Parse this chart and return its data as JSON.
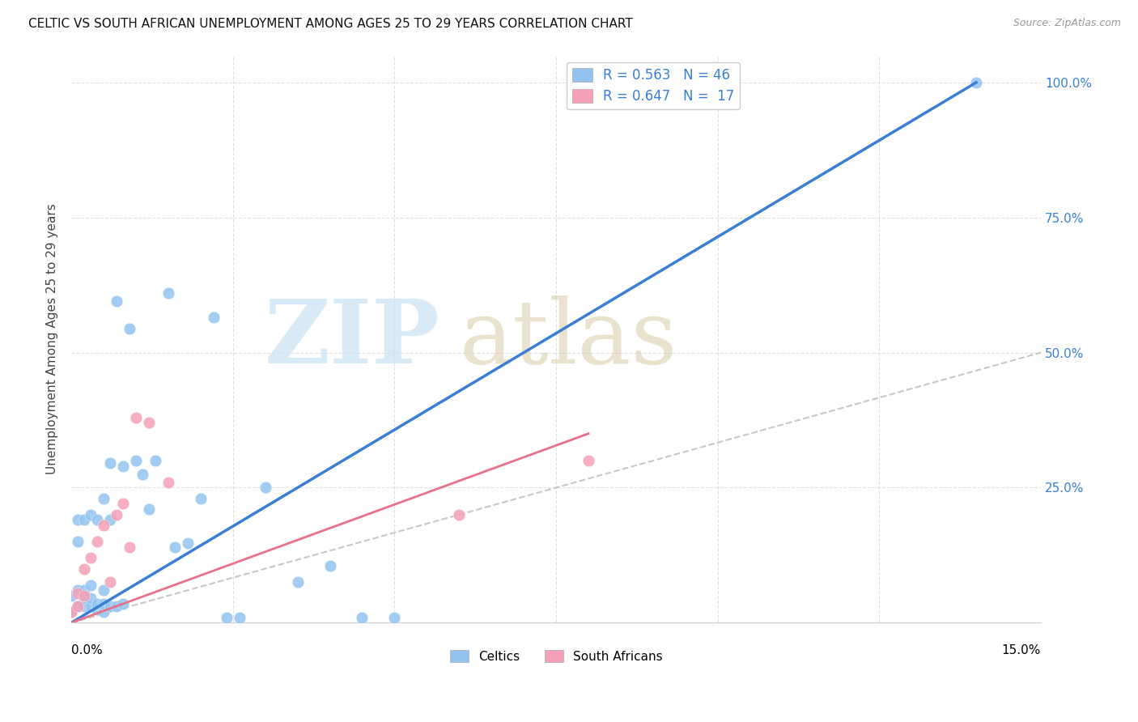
{
  "title": "CELTIC VS SOUTH AFRICAN UNEMPLOYMENT AMONG AGES 25 TO 29 YEARS CORRELATION CHART",
  "source": "Source: ZipAtlas.com",
  "ylabel": "Unemployment Among Ages 25 to 29 years",
  "celtics_color": "#93c4f0",
  "sa_color": "#f5a0b8",
  "celtics_line_color": "#3a7fd5",
  "sa_line_color": "#e8708a",
  "ref_line_color": "#c8c8c8",
  "celtics_x": [
    0.0,
    0.0,
    0.001,
    0.001,
    0.001,
    0.001,
    0.002,
    0.002,
    0.002,
    0.002,
    0.003,
    0.003,
    0.003,
    0.003,
    0.004,
    0.004,
    0.004,
    0.005,
    0.005,
    0.005,
    0.005,
    0.006,
    0.006,
    0.006,
    0.007,
    0.007,
    0.008,
    0.008,
    0.009,
    0.01,
    0.011,
    0.012,
    0.013,
    0.015,
    0.016,
    0.018,
    0.02,
    0.022,
    0.024,
    0.026,
    0.03,
    0.035,
    0.04,
    0.045,
    0.05,
    0.14
  ],
  "celtics_y": [
    0.02,
    0.05,
    0.03,
    0.06,
    0.15,
    0.19,
    0.03,
    0.045,
    0.06,
    0.19,
    0.03,
    0.045,
    0.07,
    0.2,
    0.025,
    0.035,
    0.19,
    0.02,
    0.035,
    0.06,
    0.23,
    0.03,
    0.19,
    0.295,
    0.03,
    0.595,
    0.035,
    0.29,
    0.545,
    0.3,
    0.275,
    0.21,
    0.3,
    0.61,
    0.14,
    0.148,
    0.23,
    0.565,
    0.01,
    0.01,
    0.25,
    0.075,
    0.105,
    0.01,
    0.01,
    1.0
  ],
  "sa_x": [
    0.0,
    0.001,
    0.001,
    0.002,
    0.002,
    0.003,
    0.004,
    0.005,
    0.006,
    0.007,
    0.008,
    0.009,
    0.01,
    0.012,
    0.015,
    0.06,
    0.08
  ],
  "sa_y": [
    0.02,
    0.03,
    0.055,
    0.05,
    0.1,
    0.12,
    0.15,
    0.18,
    0.075,
    0.2,
    0.22,
    0.14,
    0.38,
    0.37,
    0.26,
    0.2,
    0.3
  ],
  "xlim": [
    0.0,
    0.15
  ],
  "ylim": [
    0.0,
    1.05
  ],
  "celtics_line_x0": 0.0,
  "celtics_line_y0": 0.0,
  "celtics_line_x1": 0.14,
  "celtics_line_y1": 1.0,
  "sa_line_x0": 0.0,
  "sa_line_y0": 0.0,
  "sa_line_x1": 0.08,
  "sa_line_y1": 0.35,
  "ref_line_x0": 0.0,
  "ref_line_y0": 0.0,
  "ref_line_x1": 0.15,
  "ref_line_y1": 0.5,
  "grid_color": "#e0e0e0",
  "right_yticklabels": [
    "",
    "25.0%",
    "50.0%",
    "75.0%",
    "100.0%"
  ],
  "right_ytick_color": "#3a7fd5"
}
